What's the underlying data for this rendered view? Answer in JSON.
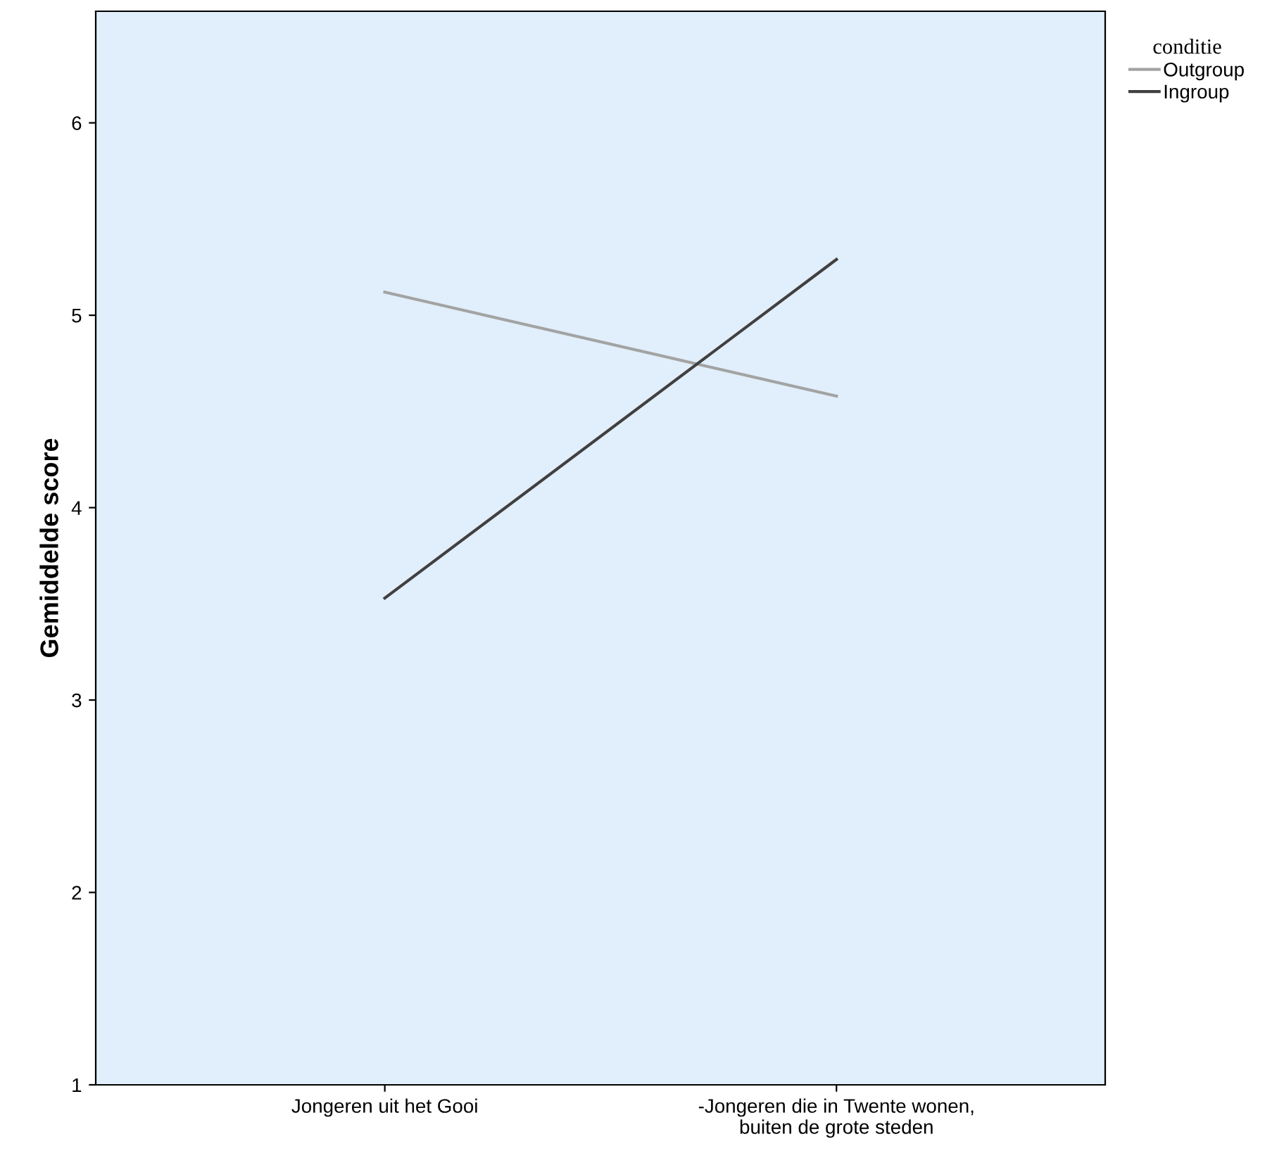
{
  "chart_data": {
    "type": "line",
    "ylabel": "Gemiddelde score",
    "legend_title": "conditie",
    "legend": "top right",
    "categories": [
      "Jongeren uit het Gooi",
      "-Jongeren die in Twente wonen,\nbuiten de grote steden"
    ],
    "series": [
      {
        "name": "Outgroup",
        "color": "#a3a3a3",
        "values": [
          5.12,
          4.58
        ]
      },
      {
        "name": "Ingroup",
        "color": "#404040",
        "values": [
          3.53,
          5.29
        ]
      }
    ],
    "ylim": [
      1,
      6.58
    ],
    "yticks": [
      1,
      2,
      3,
      4,
      5,
      6
    ],
    "grid": false,
    "marker": "none",
    "line_style": "solid"
  }
}
